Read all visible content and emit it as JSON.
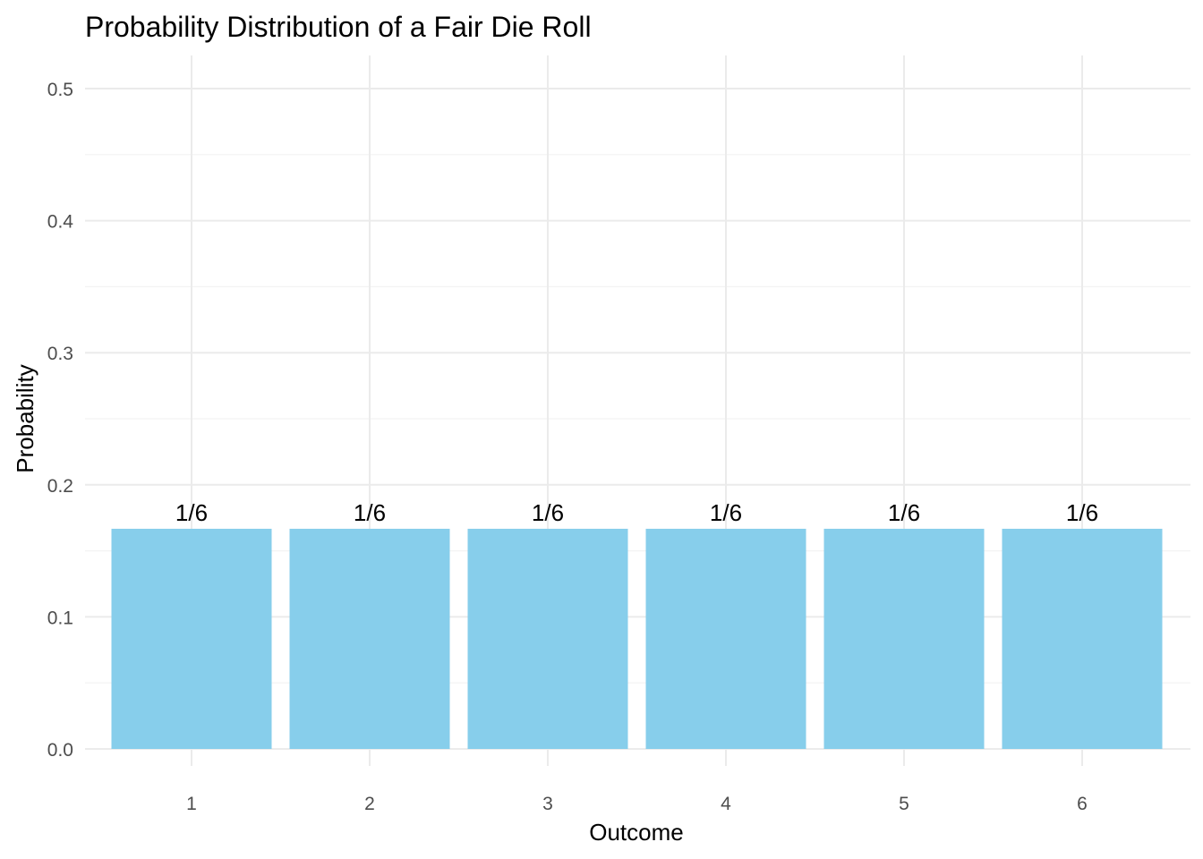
{
  "chart_data": {
    "type": "bar",
    "title": "Probability Distribution of a Fair Die Roll",
    "xlabel": "Outcome",
    "ylabel": "Probability",
    "categories": [
      "1",
      "2",
      "3",
      "4",
      "5",
      "6"
    ],
    "values": [
      0.1667,
      0.1667,
      0.1667,
      0.1667,
      0.1667,
      0.1667
    ],
    "data_labels": [
      "1/6",
      "1/6",
      "1/6",
      "1/6",
      "1/6",
      "1/6"
    ],
    "ylim": [
      0,
      0.5
    ],
    "yticks": [
      "0.0",
      "0.1",
      "0.2",
      "0.3",
      "0.4",
      "0.5"
    ],
    "grid": true,
    "legend": "none",
    "colors": {
      "bar": "#87ceeb",
      "grid_major": "#ebebeb",
      "grid_minor": "#f3f3f3",
      "tick_text": "#4d4d4d",
      "text": "#000000"
    }
  }
}
